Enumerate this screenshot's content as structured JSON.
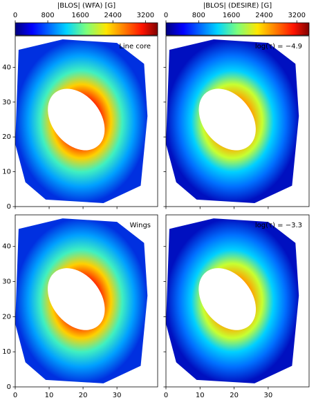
{
  "chart_data": [
    {
      "type": "image",
      "label": "Line core",
      "colorbar_label": "|BLOS| (WFA) [G]",
      "clim": [
        0,
        3500
      ],
      "cticks": [
        0,
        800,
        1600,
        2400,
        3200
      ],
      "xlim": [
        0,
        42
      ],
      "ylim": [
        0,
        49
      ],
      "xticks": [
        0,
        10,
        20,
        30
      ],
      "yticks": [
        0,
        10,
        20,
        30,
        40
      ]
    },
    {
      "type": "image",
      "label": "log(τ) = −4.9",
      "colorbar_label": "|BLOS| (DESIRE) [G]",
      "clim": [
        0,
        3500
      ],
      "cticks": [
        0,
        800,
        1600,
        2400,
        3200
      ],
      "xlim": [
        0,
        42
      ],
      "ylim": [
        0,
        49
      ],
      "xticks": [
        0,
        10,
        20,
        30
      ],
      "yticks": [
        0,
        10,
        20,
        30,
        40
      ]
    },
    {
      "type": "image",
      "label": "Wings",
      "xlim": [
        0,
        42
      ],
      "ylim": [
        0,
        49
      ],
      "xticks": [
        0,
        10,
        20,
        30
      ],
      "yticks": [
        0,
        10,
        20,
        30,
        40
      ]
    },
    {
      "type": "image",
      "label": "log(τ) = −3.3",
      "xlim": [
        0,
        42
      ],
      "ylim": [
        0,
        49
      ],
      "xticks": [
        0,
        10,
        20,
        30
      ],
      "yticks": [
        0,
        10,
        20,
        30,
        40
      ]
    }
  ]
}
